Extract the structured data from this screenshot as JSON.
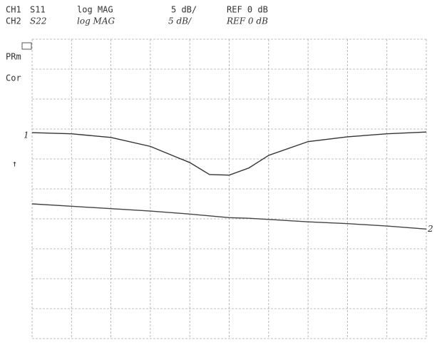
{
  "chart_data": {
    "type": "line",
    "channels": [
      {
        "label": "CH1",
        "format": "log MAG",
        "scale": "5 dB/",
        "ref": "REF 0 dB"
      },
      {
        "label": "CH2",
        "format": "log MAG",
        "scale": "5 dB/",
        "ref": "REF 0 dB"
      }
    ],
    "annotations": [
      "PRm",
      "Cor",
      "↑"
    ],
    "x": [
      0,
      1,
      2,
      3,
      4,
      4.5,
      5,
      5.5,
      6,
      7,
      8,
      9,
      10
    ],
    "series": [
      {
        "name": "S11",
        "trace_label": "1",
        "color": "#333333",
        "values": [
          -0.6,
          -0.8,
          -1.4,
          -2.9,
          -5.6,
          -7.6,
          -7.7,
          -6.5,
          -4.4,
          -2.1,
          -1.3,
          -0.8,
          -0.5
        ]
      },
      {
        "name": "S22",
        "trace_label": "2",
        "color": "#444444",
        "values": [
          -12.5,
          -12.9,
          -13.3,
          -13.7,
          -14.2,
          -14.5,
          -14.8,
          -14.9,
          -15.1,
          -15.5,
          -15.8,
          -16.2,
          -16.7
        ]
      }
    ],
    "xlim": [
      0,
      10
    ],
    "xticks": [
      0,
      1,
      2,
      3,
      4,
      5,
      6,
      7,
      8,
      9,
      10
    ],
    "ylim": [
      -35,
      15
    ],
    "yticks": [
      -35,
      -30,
      -25,
      -20,
      -15,
      -10,
      -5,
      0,
      5,
      10,
      15
    ],
    "grid": true
  }
}
